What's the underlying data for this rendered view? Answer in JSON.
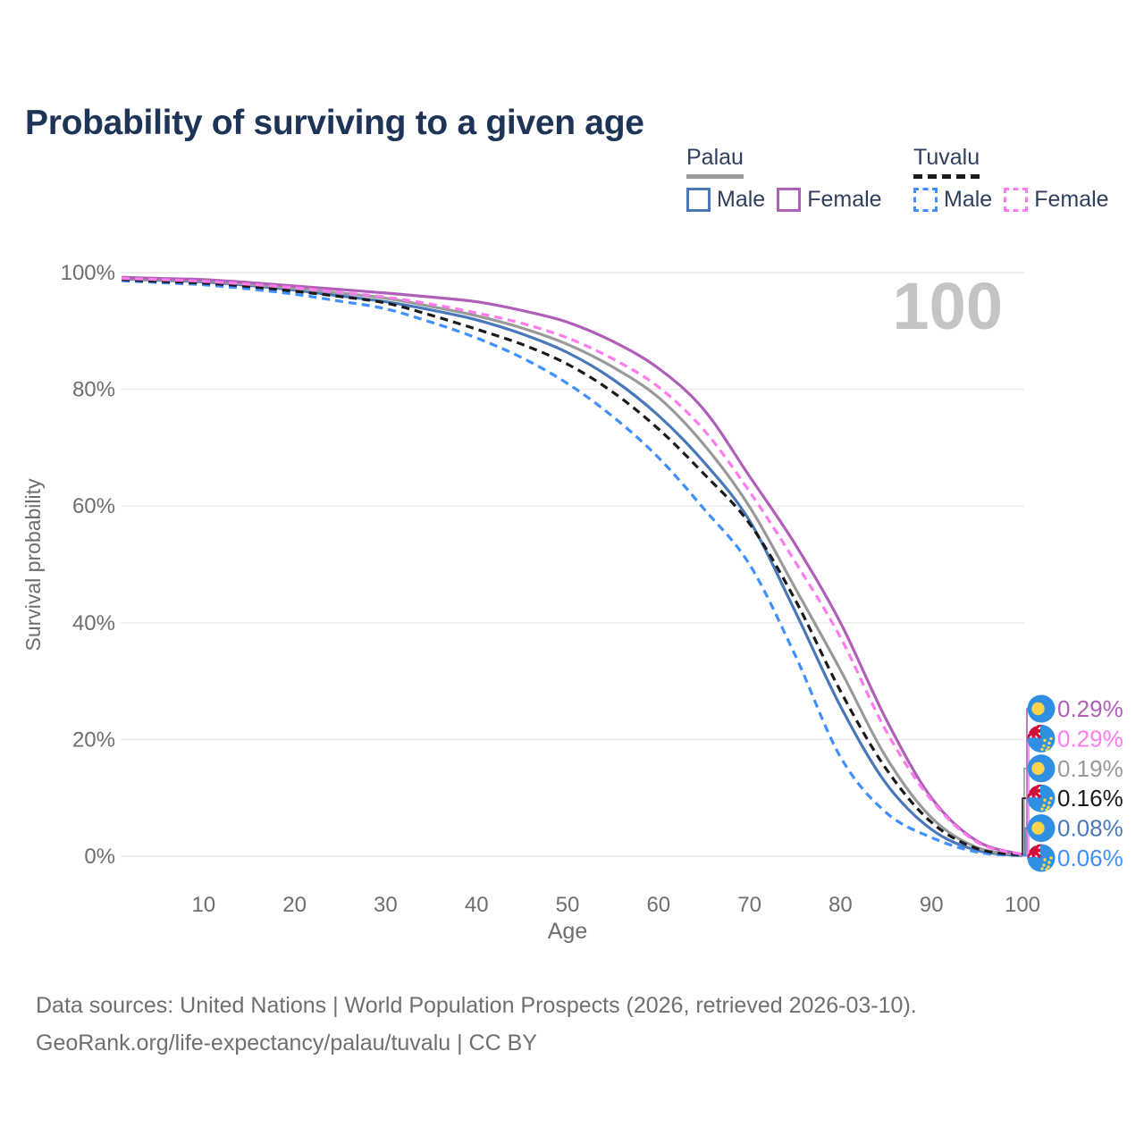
{
  "header": {
    "title": "Probability of surviving to a given age"
  },
  "legend": {
    "groups": [
      {
        "label": "Palau",
        "style": "solid",
        "color": "#9a9a9a",
        "items": [
          {
            "label": "Male",
            "color": "#4878b9",
            "style": "solid"
          },
          {
            "label": "Female",
            "color": "#b05fb8",
            "style": "solid"
          }
        ]
      },
      {
        "label": "Tuvalu",
        "style": "dashed",
        "color": "#1a1a1a",
        "items": [
          {
            "label": "Male",
            "color": "#3f8fff",
            "style": "dashed"
          },
          {
            "label": "Female",
            "color": "#ff7bef",
            "style": "dashed"
          }
        ]
      }
    ]
  },
  "chart_data": {
    "type": "line",
    "title": "Probability of surviving to a given age",
    "xlabel": "Age",
    "ylabel": "Survival probability",
    "xlim": [
      0,
      100
    ],
    "ylim": [
      0,
      100
    ],
    "x_ticks": [
      10,
      20,
      30,
      40,
      50,
      60,
      70,
      80,
      90,
      100
    ],
    "y_ticks": [
      0,
      20,
      40,
      60,
      80,
      100
    ],
    "y_tick_suffix": "%",
    "grid": true,
    "legend_position": "top-right",
    "watermark": "100",
    "ages": [
      1,
      5,
      10,
      15,
      20,
      25,
      30,
      35,
      40,
      45,
      50,
      55,
      60,
      65,
      70,
      75,
      80,
      85,
      90,
      95,
      100
    ],
    "series": [
      {
        "id": "palau-male",
        "group": "Palau",
        "name": "Male",
        "style": "solid",
        "color": "#4878b9",
        "values": [
          98.9,
          98.7,
          98.4,
          97.8,
          97.0,
          96.0,
          95.0,
          93.6,
          91.9,
          89.5,
          86.3,
          81.7,
          75.5,
          67.5,
          57.5,
          42.0,
          25.7,
          12.5,
          4.6,
          1.0,
          0.08
        ]
      },
      {
        "id": "palau-total",
        "group": "Palau",
        "name": "Palau",
        "style": "solid",
        "color": "#9a9a9a",
        "values": [
          99.0,
          98.8,
          98.6,
          98.0,
          97.3,
          96.5,
          95.6,
          94.2,
          92.6,
          90.5,
          87.7,
          83.8,
          78.6,
          70.5,
          59.9,
          46.0,
          31.9,
          17.0,
          6.6,
          1.5,
          0.19
        ]
      },
      {
        "id": "palau-female",
        "group": "Palau",
        "name": "Female",
        "style": "solid",
        "color": "#b05fb8",
        "values": [
          99.2,
          99.0,
          98.8,
          98.3,
          97.7,
          97.1,
          96.5,
          95.8,
          95.0,
          93.5,
          91.5,
          88.2,
          83.6,
          76.5,
          65.1,
          53.5,
          40.0,
          23.5,
          10.0,
          2.6,
          0.29
        ]
      },
      {
        "id": "tuvalu-male",
        "group": "Tuvalu",
        "name": "Male",
        "style": "dashed",
        "color": "#3f8fff",
        "values": [
          98.6,
          98.3,
          97.9,
          97.2,
          96.3,
          95.1,
          93.8,
          91.5,
          88.8,
          85.4,
          81.0,
          75.3,
          68.3,
          59.5,
          50.0,
          34.5,
          17.0,
          7.5,
          3.2,
          0.7,
          0.06
        ]
      },
      {
        "id": "tuvalu-total",
        "group": "Tuvalu",
        "name": "Tuvalu",
        "style": "dashed",
        "color": "#1a1a1a",
        "values": [
          98.8,
          98.5,
          98.2,
          97.6,
          96.8,
          95.9,
          94.8,
          92.7,
          90.3,
          87.7,
          84.3,
          79.5,
          73.2,
          65.5,
          57.0,
          44.0,
          28.3,
          15.0,
          5.8,
          1.3,
          0.16
        ]
      },
      {
        "id": "tuvalu-female",
        "group": "Tuvalu",
        "name": "Female",
        "style": "dashed",
        "color": "#ff7bef",
        "values": [
          99.0,
          98.8,
          98.5,
          98.0,
          97.4,
          96.6,
          95.8,
          94.6,
          93.1,
          91.3,
          88.8,
          85.2,
          80.4,
          73.0,
          62.5,
          50.5,
          37.5,
          21.5,
          9.6,
          2.4,
          0.29
        ]
      }
    ],
    "end_labels": [
      {
        "series": "Palau Female",
        "flag": "palau",
        "text": "0.29%",
        "color": "#b05fb8"
      },
      {
        "series": "Tuvalu Female",
        "flag": "tuvalu",
        "text": "0.29%",
        "color": "#ff7bef"
      },
      {
        "series": "Palau",
        "flag": "palau",
        "text": "0.19%",
        "color": "#9a9a9a"
      },
      {
        "series": "Tuvalu",
        "flag": "tuvalu",
        "text": "0.16%",
        "color": "#1a1a1a"
      },
      {
        "series": "Palau Male",
        "flag": "palau",
        "text": "0.08%",
        "color": "#4878b9"
      },
      {
        "series": "Tuvalu Male",
        "flag": "tuvalu",
        "text": "0.06%",
        "color": "#3f8fff"
      }
    ],
    "flag_colors": {
      "field_blue": "#2e8fe3",
      "palau_sun": "#ffd24a",
      "jack_red": "#d0103a",
      "jack_white": "#ffffff",
      "star_yellow": "#ffd84d"
    },
    "text_colors": {
      "axis": "#6e6e6e",
      "grid": "#e9e9e9",
      "watermark": "#c4c4c4"
    }
  },
  "footer": {
    "line1": "Data sources: United Nations | World Population Prospects (2026, retrieved 2026-03-10).",
    "line2": "GeoRank.org/life-expectancy/palau/tuvalu | CC BY"
  }
}
